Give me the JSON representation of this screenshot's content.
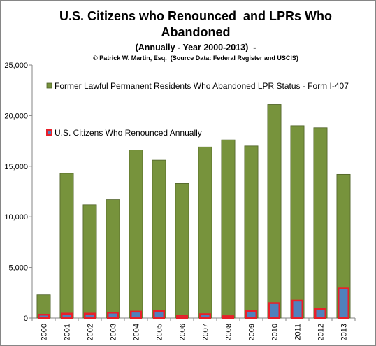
{
  "chart_data": {
    "type": "bar",
    "title_line1": "U.S. Citizens who Renounced  and LPRs Who",
    "title_line2": "Abandoned",
    "subtitle": "(Annually - Year 2000-2013)  -",
    "credit": "© Patrick W. Martin, Esq.  (Source Data: Federal Register and USCIS)",
    "categories": [
      "2000",
      "2001",
      "2002",
      "2003",
      "2004",
      "2005",
      "2006",
      "2007",
      "2008",
      "2009",
      "2010",
      "2011",
      "2012",
      "2013"
    ],
    "ylim": [
      0,
      25000
    ],
    "yticks": [
      0,
      5000,
      10000,
      15000,
      20000,
      25000
    ],
    "ytick_labels": [
      "0",
      "5,000",
      "10,000",
      "15,000",
      "20,000",
      "25,000"
    ],
    "grid": false,
    "legend_placement": "top-left",
    "series": [
      {
        "name": "Former Lawful Permanent Residents Who Abandoned LPR Status - Form I-407",
        "color": "#77933c",
        "edge": "#4f6228",
        "values": [
          2300,
          14300,
          11200,
          11700,
          16600,
          15600,
          13300,
          16900,
          17600,
          17000,
          21100,
          19000,
          18800,
          14200
        ]
      },
      {
        "name": "U.S. Citizens Who Renounced Annually",
        "color": "#4f81bd",
        "edge": "#e8202a",
        "values": [
          400,
          500,
          500,
          600,
          700,
          750,
          300,
          450,
          250,
          750,
          1550,
          1800,
          950,
          3000
        ]
      }
    ]
  }
}
